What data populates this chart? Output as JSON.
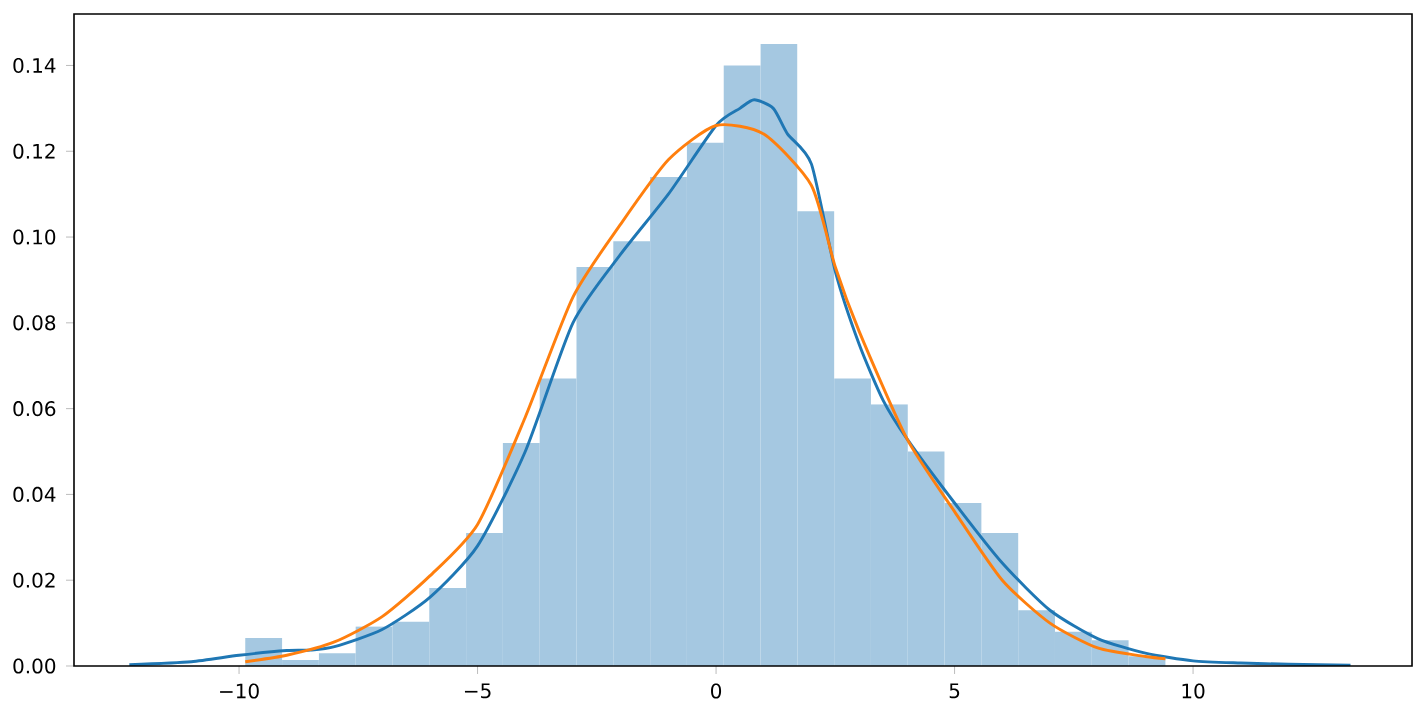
{
  "chart_data": {
    "type": "histogram",
    "color": "#a5c8e1",
    "bins": [
      -9.87,
      -9.098,
      -8.327,
      -7.555,
      -6.784,
      -6.012,
      -5.24,
      -4.469,
      -3.697,
      -2.926,
      -2.154,
      -1.382,
      -0.611,
      0.161,
      0.932,
      1.704,
      2.476,
      3.247,
      4.019,
      4.79,
      5.562,
      6.334,
      7.105,
      7.877,
      8.648,
      9.42
    ],
    "values": [
      0.0065,
      0.0014,
      0.003,
      0.0092,
      0.0103,
      0.0182,
      0.031,
      0.052,
      0.067,
      0.093,
      0.099,
      0.114,
      0.122,
      0.14,
      0.145,
      0.106,
      0.067,
      0.061,
      0.05,
      0.038,
      0.031,
      0.013,
      0.008,
      0.006,
      0.0023
    ],
    "series": [
      {
        "type": "line",
        "color": "#1f77b4",
        "x": [
          -12.3,
          -11,
          -10,
          -9,
          -8.5,
          -8,
          -7,
          -6,
          -5,
          -4,
          -3,
          -2,
          -1,
          0,
          0.5,
          0.8,
          1.2,
          1.5,
          2,
          2.5,
          3,
          3.5,
          4,
          5,
          6,
          7,
          8,
          9,
          10,
          11,
          12,
          13.3
        ],
        "values": [
          0.0003,
          0.001,
          0.0025,
          0.0036,
          0.0037,
          0.0045,
          0.0085,
          0.016,
          0.028,
          0.05,
          0.08,
          0.096,
          0.11,
          0.126,
          0.13,
          0.132,
          0.13,
          0.124,
          0.117,
          0.092,
          0.075,
          0.062,
          0.053,
          0.038,
          0.024,
          0.013,
          0.0064,
          0.003,
          0.0012,
          0.0007,
          0.0004,
          0.0002
        ]
      },
      {
        "type": "line",
        "color": "#ff7f0e",
        "x": [
          -9.87,
          -9,
          -8,
          -7,
          -6,
          -5,
          -4,
          -3,
          -2,
          -1,
          0,
          1,
          2,
          2.5,
          3,
          4,
          5,
          6,
          7,
          8,
          9,
          9.42
        ],
        "values": [
          0.001,
          0.0025,
          0.0056,
          0.0115,
          0.021,
          0.033,
          0.058,
          0.086,
          0.103,
          0.118,
          0.126,
          0.124,
          0.112,
          0.093,
          0.078,
          0.053,
          0.036,
          0.02,
          0.01,
          0.0042,
          0.0022,
          0.0017
        ]
      }
    ],
    "xlim": [
      -13.46,
      14.59
    ],
    "ylim": [
      0,
      0.152
    ],
    "xticks": [
      {
        "value": -10,
        "label": "−10"
      },
      {
        "value": -5,
        "label": "−5"
      },
      0,
      5,
      10
    ],
    "yticks": [
      {
        "value": 0,
        "label": "0.00"
      },
      {
        "value": 0.02,
        "label": "0.02"
      },
      {
        "value": 0.04,
        "label": "0.04"
      },
      {
        "value": 0.06,
        "label": "0.06"
      },
      {
        "value": 0.08,
        "label": "0.08"
      },
      {
        "value": 0.1,
        "label": "0.10"
      },
      {
        "value": 0.12,
        "label": "0.12"
      },
      {
        "value": 0.14,
        "label": "0.14"
      }
    ],
    "grid": false
  }
}
